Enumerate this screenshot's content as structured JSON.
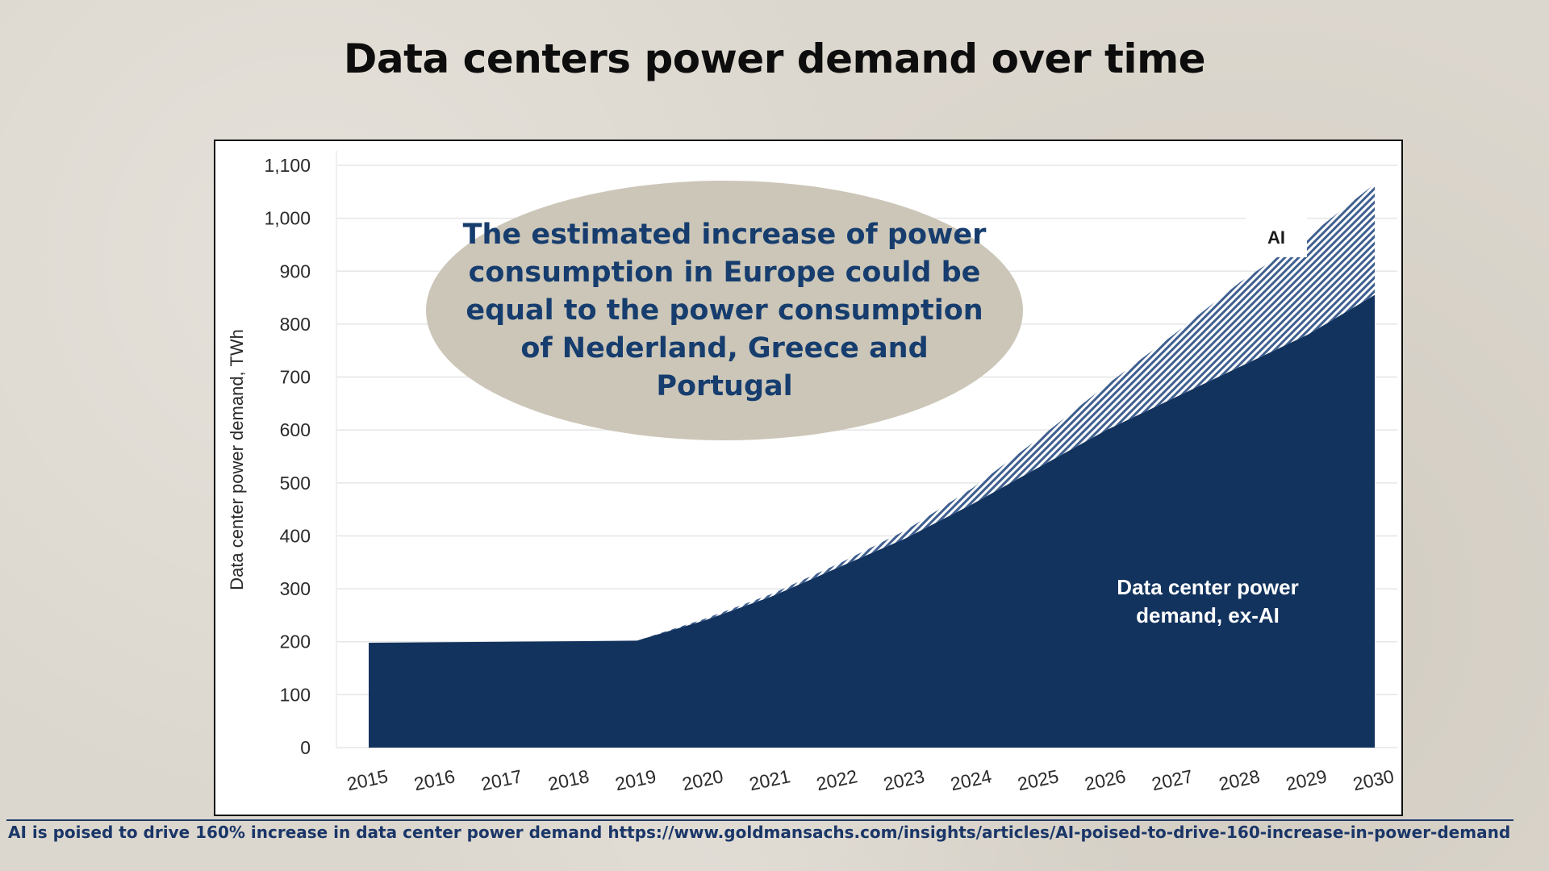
{
  "slide": {
    "title": "Data centers power demand over time",
    "callout": "The estimated increase of power consumption in Europe could be equal to the power consumption of Nederland, Greece and Portugal",
    "footer": "AI is poised to drive 160% increase in data center power demand https://www.goldmansachs.com/insights/articles/AI-poised-to-drive-160-increase-in-power-demand"
  },
  "chart_data": {
    "type": "area",
    "stacked": true,
    "title": "",
    "xlabel": "",
    "ylabel": "Data center power demand, TWh",
    "x": [
      2015,
      2016,
      2017,
      2018,
      2019,
      2020,
      2021,
      2022,
      2023,
      2024,
      2025,
      2026,
      2027,
      2028,
      2029,
      2030
    ],
    "x_tick_labels": [
      "2015",
      "2016",
      "2017",
      "2018",
      "2019",
      "2020",
      "2021",
      "2022",
      "2023",
      "2024",
      "2025",
      "2026",
      "2027",
      "2028",
      "2029",
      "2030"
    ],
    "y_ticks": [
      0,
      100,
      200,
      300,
      400,
      500,
      600,
      700,
      800,
      900,
      1000,
      1100
    ],
    "y_tick_labels": [
      "0",
      "100",
      "200",
      "300",
      "400",
      "500",
      "600",
      "700",
      "800",
      "900",
      "1,000",
      "1,100"
    ],
    "ylim": [
      0,
      1100
    ],
    "grid": true,
    "series": [
      {
        "name": "Data center power demand, ex-AI",
        "color": "#12335e",
        "values": [
          198,
          199,
          200,
          201,
          202,
          240,
          285,
          340,
          395,
          460,
          530,
          600,
          660,
          720,
          780,
          855
        ]
      },
      {
        "name": "AI",
        "color": "#3f5f8f",
        "pattern": "diagonal-hatch",
        "values": [
          0,
          0,
          0,
          0,
          0,
          3,
          5,
          7,
          15,
          30,
          55,
          85,
          120,
          160,
          185,
          210
        ]
      }
    ],
    "annotations": [
      {
        "text": "AI",
        "style": "boxed-label"
      },
      {
        "text": "Data center power demand, ex-AI",
        "style": "inline-label"
      }
    ]
  }
}
